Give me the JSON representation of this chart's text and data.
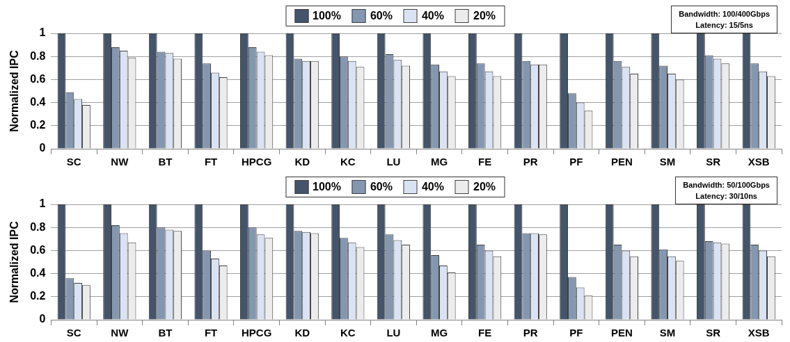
{
  "chart_data": [
    {
      "type": "bar",
      "ylabel": "Normalized IPC",
      "categories": [
        "SC",
        "NW",
        "BT",
        "FT",
        "HPCG",
        "KD",
        "KC",
        "LU",
        "MG",
        "FE",
        "PR",
        "PF",
        "PEN",
        "SM",
        "SR",
        "XSB"
      ],
      "series": [
        {
          "name": "100%",
          "color": "#44546a",
          "values": [
            1,
            1,
            1,
            1,
            1,
            1,
            1,
            1,
            1,
            1,
            1,
            1,
            1,
            1,
            1,
            1
          ]
        },
        {
          "name": "60%",
          "color": "#8497b0",
          "values": [
            0.49,
            0.88,
            0.84,
            0.74,
            0.88,
            0.78,
            0.8,
            0.82,
            0.73,
            0.74,
            0.76,
            0.48,
            0.76,
            0.72,
            0.81,
            0.74
          ]
        },
        {
          "name": "40%",
          "color": "#dae3f3",
          "values": [
            0.43,
            0.85,
            0.83,
            0.66,
            0.84,
            0.76,
            0.76,
            0.77,
            0.67,
            0.67,
            0.73,
            0.4,
            0.71,
            0.65,
            0.78,
            0.67
          ]
        },
        {
          "name": "20%",
          "color": "#ececec",
          "values": [
            0.38,
            0.79,
            0.78,
            0.62,
            0.81,
            0.76,
            0.71,
            0.72,
            0.63,
            0.63,
            0.73,
            0.33,
            0.65,
            0.6,
            0.74,
            0.63
          ]
        }
      ],
      "ylim": [
        0,
        1
      ],
      "yticks": [
        0,
        0.2,
        0.4,
        0.6,
        0.8,
        1
      ],
      "grid": "y",
      "legend": "top",
      "annotations": [
        "Bandwidth: 100/400Gbps",
        "Latency: 15/5ns"
      ]
    },
    {
      "type": "bar",
      "ylabel": "Normalized IPC",
      "categories": [
        "SC",
        "NW",
        "BT",
        "FT",
        "HPCG",
        "KD",
        "KC",
        "LU",
        "MG",
        "FE",
        "PR",
        "PF",
        "PEN",
        "SM",
        "SR",
        "XSB"
      ],
      "series": [
        {
          "name": "100%",
          "color": "#44546a",
          "values": [
            1,
            1,
            1,
            1,
            1,
            1,
            1,
            1,
            1,
            1,
            1,
            1,
            1,
            1,
            1,
            1
          ]
        },
        {
          "name": "60%",
          "color": "#8497b0",
          "values": [
            0.36,
            0.82,
            0.8,
            0.6,
            0.8,
            0.77,
            0.71,
            0.74,
            0.56,
            0.65,
            0.75,
            0.37,
            0.65,
            0.61,
            0.68,
            0.65
          ]
        },
        {
          "name": "40%",
          "color": "#dae3f3",
          "values": [
            0.32,
            0.75,
            0.78,
            0.53,
            0.74,
            0.76,
            0.67,
            0.69,
            0.47,
            0.6,
            0.75,
            0.28,
            0.6,
            0.55,
            0.67,
            0.6
          ]
        },
        {
          "name": "20%",
          "color": "#ececec",
          "values": [
            0.3,
            0.67,
            0.77,
            0.47,
            0.71,
            0.75,
            0.63,
            0.65,
            0.41,
            0.55,
            0.74,
            0.21,
            0.55,
            0.51,
            0.66,
            0.55
          ]
        }
      ],
      "ylim": [
        0,
        1
      ],
      "yticks": [
        0,
        0.2,
        0.4,
        0.6,
        0.8,
        1
      ],
      "grid": "y",
      "legend": "top",
      "annotations": [
        "Bandwidth: 50/100Gbps",
        "Latency: 30/10ns"
      ]
    }
  ]
}
